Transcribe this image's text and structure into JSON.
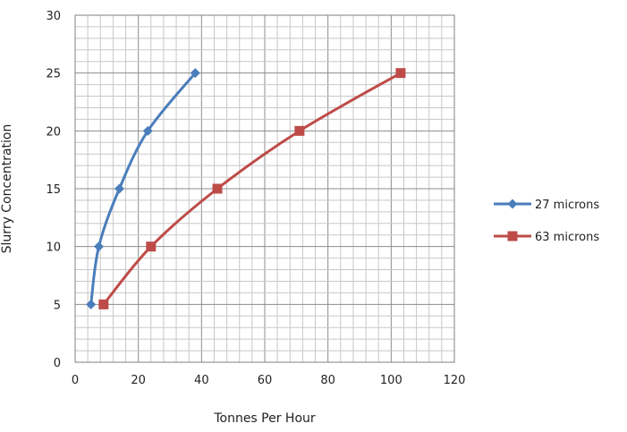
{
  "chart_data": {
    "type": "line",
    "title": "",
    "xlabel": "Tonnes Per Hour",
    "ylabel": "Slurry Concentration",
    "xlim": [
      0,
      120
    ],
    "ylim": [
      0,
      30
    ],
    "x_ticks": [
      0,
      20,
      40,
      60,
      80,
      100,
      120
    ],
    "y_ticks": [
      0,
      5,
      10,
      15,
      20,
      25,
      30
    ],
    "minor_grid": true,
    "legend_position": "right",
    "series": [
      {
        "name": "27 microns",
        "color": "#4a7ebb",
        "marker": "diamond",
        "points": [
          [
            5,
            5
          ],
          [
            7.5,
            10
          ],
          [
            14,
            15
          ],
          [
            23,
            20
          ],
          [
            38,
            25
          ]
        ]
      },
      {
        "name": "63 microns",
        "color": "#be4b48",
        "marker": "square",
        "points": [
          [
            9,
            5
          ],
          [
            24,
            10
          ],
          [
            45,
            15
          ],
          [
            71,
            20
          ],
          [
            103,
            25
          ]
        ]
      }
    ]
  }
}
